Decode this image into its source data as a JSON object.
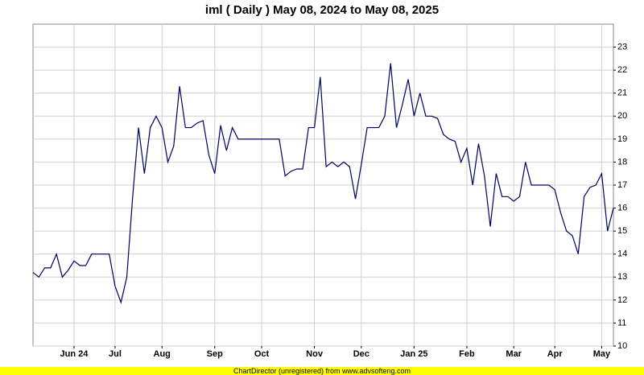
{
  "chart_data": {
    "type": "line",
    "title": "iml ( Daily ) May 08, 2024 to May 08, 2025",
    "footer": "ChartDirector (unregistered) from www.advsofteng.com",
    "categories": [
      null,
      null,
      null,
      null,
      null,
      null,
      null,
      "Jun 24",
      null,
      null,
      null,
      null,
      null,
      null,
      "Jul",
      null,
      null,
      null,
      null,
      null,
      null,
      null,
      "Aug",
      null,
      null,
      null,
      null,
      null,
      null,
      null,
      null,
      "Sep",
      null,
      null,
      null,
      null,
      null,
      null,
      null,
      "Oct",
      null,
      null,
      null,
      null,
      null,
      null,
      null,
      null,
      "Nov",
      null,
      null,
      null,
      null,
      null,
      null,
      null,
      "Dec",
      null,
      null,
      null,
      null,
      null,
      null,
      null,
      null,
      "Jan 25",
      null,
      null,
      null,
      null,
      null,
      null,
      null,
      null,
      "Feb",
      null,
      null,
      null,
      null,
      null,
      null,
      null,
      "Mar",
      null,
      null,
      null,
      null,
      null,
      null,
      "Apr",
      null,
      null,
      null,
      null,
      null,
      null,
      null,
      "May",
      null,
      null
    ],
    "values": [
      13.2,
      13.0,
      13.4,
      13.4,
      14.0,
      13.0,
      13.3,
      13.7,
      13.5,
      13.5,
      14.0,
      14.0,
      14.0,
      14.0,
      12.6,
      11.9,
      13.0,
      16.5,
      19.5,
      17.5,
      19.5,
      20.0,
      19.5,
      18.0,
      18.7,
      21.3,
      19.5,
      19.5,
      19.7,
      19.8,
      18.3,
      17.5,
      19.6,
      18.5,
      19.5,
      19.0,
      19.0,
      19.0,
      19.0,
      19.0,
      19.0,
      19.0,
      19.0,
      17.4,
      17.6,
      17.7,
      17.7,
      19.5,
      19.5,
      21.7,
      17.8,
      18.0,
      17.8,
      18.0,
      17.8,
      16.4,
      17.9,
      19.5,
      19.5,
      19.5,
      20.0,
      22.3,
      19.5,
      20.5,
      21.6,
      20.0,
      21.0,
      20.0,
      20.0,
      19.9,
      19.2,
      19.0,
      18.9,
      18.0,
      18.6,
      17.0,
      18.8,
      17.4,
      15.2,
      17.5,
      16.5,
      16.5,
      16.3,
      16.5,
      18.0,
      17.0,
      17.0,
      17.0,
      17.0,
      16.8,
      15.8,
      15.0,
      14.8,
      14.0,
      16.5,
      16.9,
      17.0,
      17.5,
      15.0,
      16.0
    ],
    "color": "#000060",
    "ylim": [
      10,
      24
    ],
    "yticks": [
      10,
      11,
      12,
      13,
      14,
      15,
      16,
      17,
      18,
      19,
      20,
      21,
      22,
      23
    ],
    "grid": true
  }
}
